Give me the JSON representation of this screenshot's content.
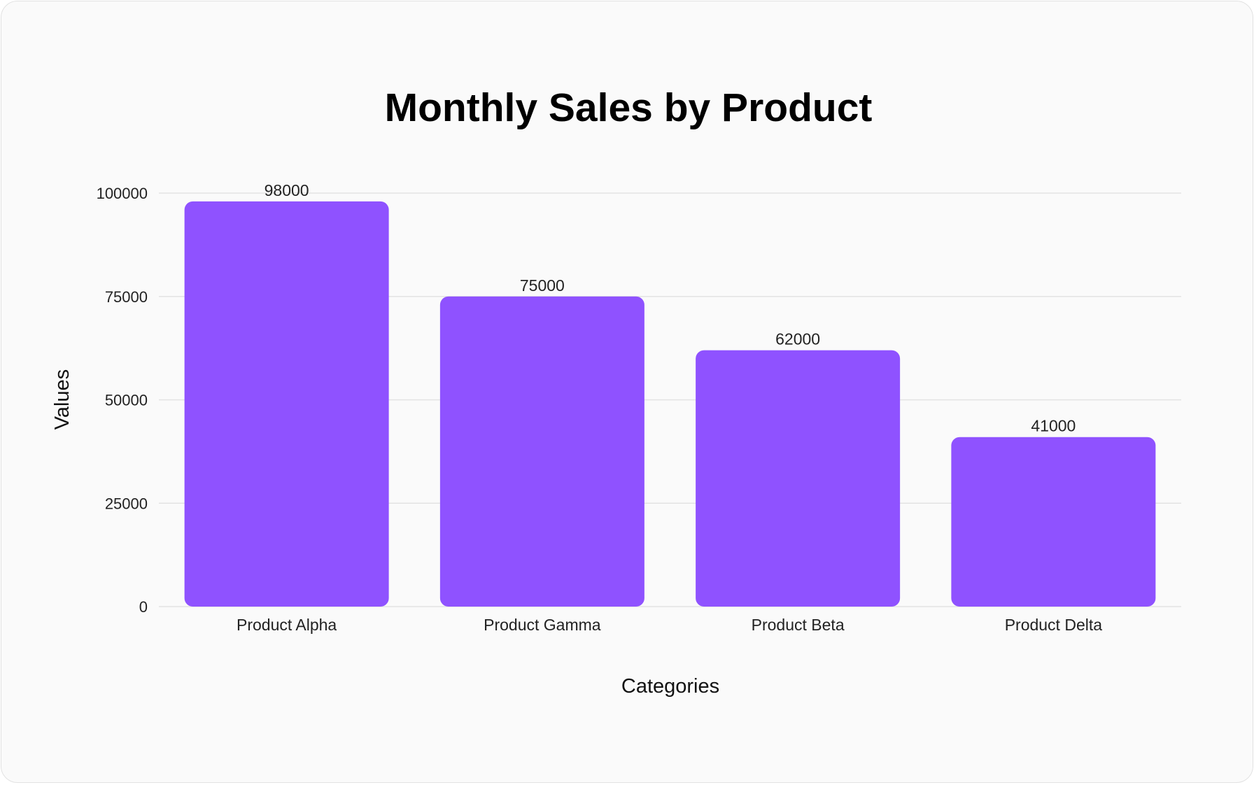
{
  "chart_data": {
    "type": "bar",
    "title": "Monthly Sales by Product",
    "xlabel": "Categories",
    "ylabel": "Values",
    "categories": [
      "Product Alpha",
      "Product Gamma",
      "Product Beta",
      "Product Delta"
    ],
    "values": [
      98000,
      75000,
      62000,
      41000
    ],
    "ylim": [
      0,
      100000
    ],
    "yticks": [
      "0",
      "25000",
      "50000",
      "75000",
      "100000"
    ],
    "grid": true,
    "legend": "none",
    "bar_color": "#8f52ff",
    "data_labels": [
      "98000",
      "75000",
      "62000",
      "41000"
    ]
  }
}
